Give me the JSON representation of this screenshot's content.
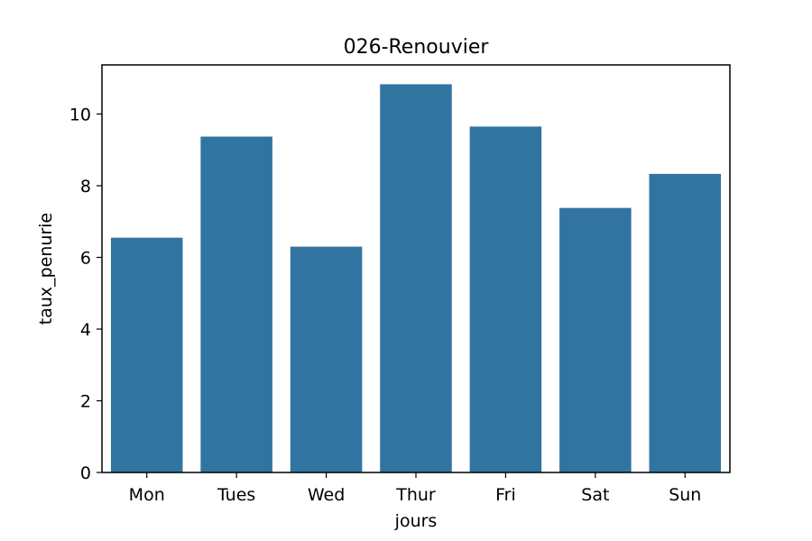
{
  "chart_data": {
    "type": "bar",
    "title": "026-Renouvier",
    "xlabel": "jours",
    "ylabel": "taux_penurie",
    "categories": [
      "Mon",
      "Tues",
      "Wed",
      "Thur",
      "Fri",
      "Sat",
      "Sun"
    ],
    "values": [
      6.55,
      9.37,
      6.3,
      10.83,
      9.65,
      7.38,
      8.33
    ],
    "ylim": [
      0,
      11.37
    ],
    "yticks": [
      0,
      2,
      4,
      6,
      8,
      10
    ],
    "bar_color": "#3274a1",
    "grid": false,
    "legend": "none"
  }
}
